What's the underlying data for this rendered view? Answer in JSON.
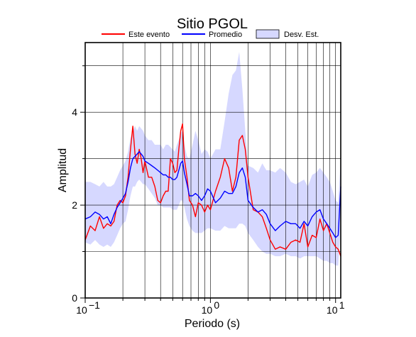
{
  "chart_data": {
    "type": "line",
    "title": "Sitio PGOL",
    "xlabel": "Periodo (s)",
    "ylabel": "Amplitud",
    "x_scale": "log",
    "xlim": [
      0.1,
      11
    ],
    "ylim": [
      0,
      5.5
    ],
    "x_ticks": [
      {
        "label": "10",
        "exp": "−1"
      },
      {
        "label": "10",
        "exp": "0"
      },
      {
        "label": "10",
        "exp": "1"
      }
    ],
    "y_ticks": [
      "0",
      "2",
      "4"
    ],
    "grid": true,
    "legend_position": "top",
    "legend": [
      {
        "label": "Este evento",
        "kind": "line",
        "color": "#ff0000"
      },
      {
        "label": "Promedio",
        "kind": "line",
        "color": "#0000ff"
      },
      {
        "label": "Desv. Est.",
        "kind": "band",
        "color": "#d6d8ff"
      }
    ],
    "x": [
      0.1,
      0.11,
      0.12,
      0.13,
      0.14,
      0.15,
      0.16,
      0.17,
      0.18,
      0.19,
      0.2,
      0.21,
      0.22,
      0.23,
      0.24,
      0.25,
      0.26,
      0.27,
      0.28,
      0.29,
      0.3,
      0.32,
      0.34,
      0.36,
      0.38,
      0.4,
      0.42,
      0.44,
      0.46,
      0.48,
      0.5,
      0.52,
      0.54,
      0.56,
      0.58,
      0.6,
      0.62,
      0.65,
      0.68,
      0.72,
      0.76,
      0.8,
      0.85,
      0.9,
      0.95,
      1.0,
      1.1,
      1.2,
      1.3,
      1.4,
      1.5,
      1.6,
      1.7,
      1.8,
      1.9,
      2.0,
      2.2,
      2.4,
      2.6,
      2.8,
      3.0,
      3.3,
      3.6,
      4.0,
      4.4,
      4.8,
      5.2,
      5.6,
      6.0,
      6.5,
      7.0,
      7.5,
      8.0,
      8.5,
      9.0,
      9.5,
      10.0,
      10.5,
      11.0
    ],
    "series": [
      {
        "name": "Este evento",
        "color": "#ff0000",
        "values": [
          1.25,
          1.55,
          1.45,
          1.75,
          1.5,
          1.6,
          1.55,
          1.65,
          2.0,
          2.1,
          2.05,
          2.2,
          2.6,
          3.2,
          3.7,
          3.1,
          2.9,
          3.2,
          3.0,
          2.7,
          2.95,
          2.6,
          2.6,
          2.4,
          2.1,
          2.05,
          2.2,
          2.3,
          2.3,
          3.0,
          2.9,
          2.7,
          2.75,
          3.2,
          3.6,
          3.75,
          3.0,
          2.6,
          2.1,
          2.0,
          1.75,
          2.05,
          2.0,
          1.85,
          2.0,
          1.9,
          2.3,
          2.6,
          3.0,
          2.8,
          2.3,
          2.6,
          3.4,
          3.5,
          3.2,
          2.6,
          1.9,
          1.85,
          1.75,
          1.5,
          1.25,
          1.05,
          1.1,
          1.05,
          1.2,
          1.25,
          1.2,
          1.6,
          1.1,
          1.35,
          1.3,
          1.7,
          1.45,
          1.6,
          1.4,
          1.2,
          1.1,
          1.05,
          0.9
        ]
      },
      {
        "name": "Promedio",
        "color": "#0000ff",
        "values": [
          1.7,
          1.75,
          1.85,
          1.8,
          1.7,
          1.75,
          1.6,
          1.8,
          1.95,
          2.05,
          2.15,
          2.25,
          2.5,
          2.8,
          3.0,
          3.05,
          3.1,
          3.15,
          3.1,
          3.05,
          2.95,
          2.9,
          2.85,
          2.8,
          2.75,
          2.7,
          2.65,
          2.65,
          2.6,
          2.6,
          2.55,
          2.55,
          2.6,
          2.75,
          2.9,
          2.95,
          2.7,
          2.45,
          2.2,
          2.2,
          2.25,
          2.2,
          2.1,
          2.2,
          2.35,
          2.3,
          2.05,
          2.15,
          2.3,
          2.25,
          2.25,
          2.4,
          2.7,
          2.8,
          2.6,
          2.1,
          1.95,
          1.85,
          1.9,
          1.8,
          1.6,
          1.45,
          1.55,
          1.65,
          1.6,
          1.6,
          1.5,
          1.65,
          1.55,
          1.75,
          1.85,
          1.9,
          1.7,
          1.6,
          1.5,
          1.4,
          1.3,
          1.35,
          2.4
        ]
      }
    ],
    "std_band": {
      "label": "Desv. Est.",
      "upper": [
        2.5,
        2.5,
        2.45,
        2.4,
        2.5,
        2.4,
        2.4,
        2.45,
        2.6,
        2.75,
        2.85,
        2.95,
        3.15,
        3.45,
        3.6,
        3.7,
        3.6,
        3.7,
        3.65,
        3.6,
        3.5,
        3.4,
        3.4,
        3.3,
        3.3,
        3.3,
        3.2,
        3.3,
        3.3,
        3.25,
        3.2,
        3.15,
        3.3,
        3.4,
        3.55,
        3.6,
        3.3,
        3.05,
        3.0,
        3.3,
        3.6,
        3.4,
        3.1,
        3.2,
        3.15,
        3.0,
        3.2,
        3.2,
        3.8,
        4.4,
        4.8,
        4.9,
        5.3,
        4.5,
        3.6,
        2.85,
        2.8,
        2.7,
        2.9,
        2.75,
        2.75,
        2.7,
        2.8,
        2.7,
        2.5,
        2.45,
        2.5,
        2.55,
        2.4,
        2.65,
        2.7,
        2.8,
        2.7,
        2.6,
        2.5,
        2.3,
        2.1,
        2.05,
        2.95
      ],
      "lower": [
        1.2,
        1.15,
        1.25,
        1.15,
        1.1,
        1.15,
        1.1,
        1.2,
        1.35,
        1.5,
        1.6,
        1.65,
        1.9,
        2.2,
        2.4,
        2.4,
        2.5,
        2.55,
        2.5,
        2.45,
        2.45,
        2.35,
        2.25,
        2.15,
        2.0,
        2.0,
        1.95,
        1.95,
        1.95,
        1.95,
        1.9,
        1.9,
        1.9,
        2.0,
        2.1,
        2.1,
        1.95,
        1.7,
        1.55,
        1.45,
        1.4,
        1.4,
        1.4,
        1.45,
        1.5,
        1.5,
        1.45,
        1.45,
        1.55,
        1.5,
        1.5,
        1.5,
        1.6,
        1.6,
        1.55,
        1.4,
        1.25,
        1.1,
        1.0,
        0.95,
        0.95,
        0.9,
        0.9,
        0.95,
        0.9,
        0.9,
        0.85,
        0.9,
        0.9,
        0.9,
        0.9,
        0.85,
        0.8,
        0.8,
        0.75,
        0.75,
        0.7,
        0.7,
        1.6
      ]
    }
  }
}
